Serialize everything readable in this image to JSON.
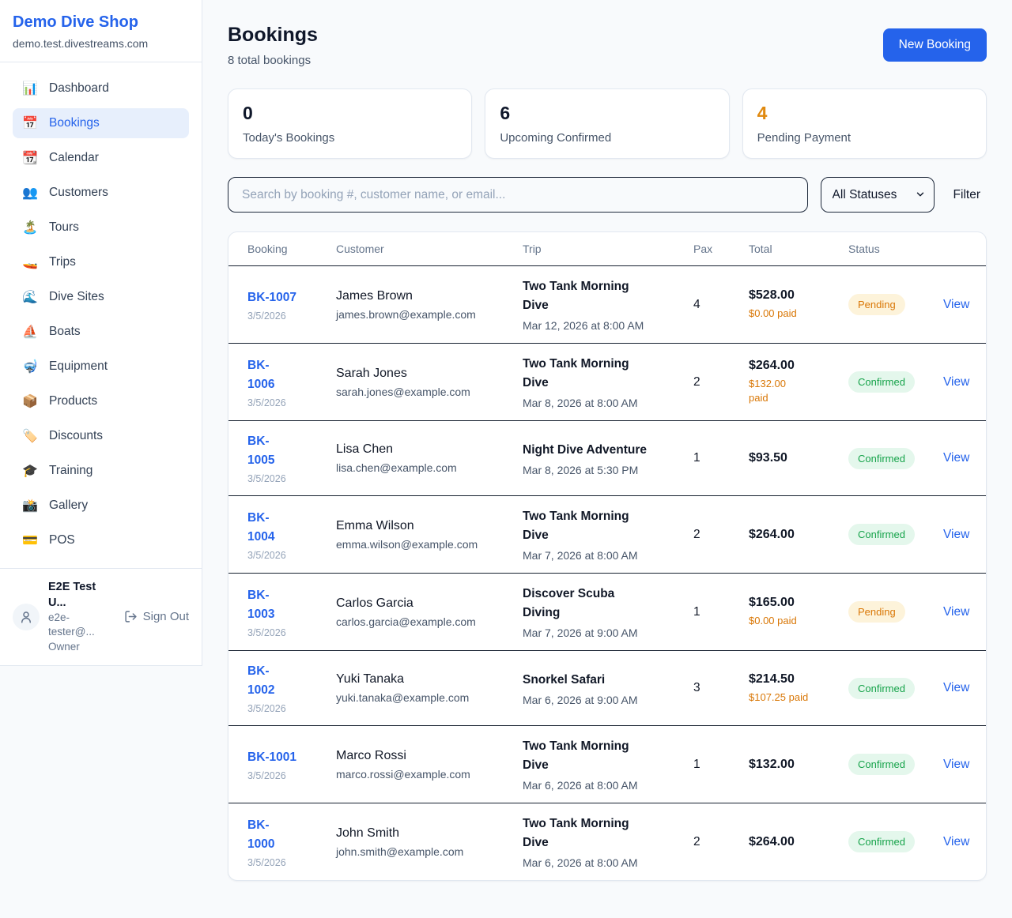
{
  "sidebar": {
    "brand": {
      "name": "Demo Dive Shop",
      "domain": "demo.test.divestreams.com"
    },
    "nav": [
      {
        "icon": "📊",
        "icon_name": "bar-chart-icon",
        "label": "Dashboard",
        "active": false
      },
      {
        "icon": "📅",
        "icon_name": "calendar-bookings-icon",
        "label": "Bookings",
        "active": true
      },
      {
        "icon": "📆",
        "icon_name": "calendar-icon",
        "label": "Calendar",
        "active": false
      },
      {
        "icon": "👥",
        "icon_name": "people-icon",
        "label": "Customers",
        "active": false
      },
      {
        "icon": "🏝️",
        "icon_name": "island-icon",
        "label": "Tours",
        "active": false
      },
      {
        "icon": "🚤",
        "icon_name": "speedboat-icon",
        "label": "Trips",
        "active": false
      },
      {
        "icon": "🌊",
        "icon_name": "wave-icon",
        "label": "Dive Sites",
        "active": false
      },
      {
        "icon": "⛵",
        "icon_name": "sailboat-icon",
        "label": "Boats",
        "active": false
      },
      {
        "icon": "🤿",
        "icon_name": "diving-mask-icon",
        "label": "Equipment",
        "active": false
      },
      {
        "icon": "📦",
        "icon_name": "package-icon",
        "label": "Products",
        "active": false
      },
      {
        "icon": "🏷️",
        "icon_name": "tag-icon",
        "label": "Discounts",
        "active": false
      },
      {
        "icon": "🎓",
        "icon_name": "graduation-cap-icon",
        "label": "Training",
        "active": false
      },
      {
        "icon": "📸",
        "icon_name": "camera-icon",
        "label": "Gallery",
        "active": false
      },
      {
        "icon": "💳",
        "icon_name": "credit-card-icon",
        "label": "POS",
        "active": false
      }
    ],
    "user": {
      "name": "E2E Test U...",
      "email": "e2e-tester@...",
      "role": "Owner",
      "sign_out_label": "Sign Out"
    }
  },
  "header": {
    "title": "Bookings",
    "subtitle": "8 total bookings",
    "new_booking_label": "New Booking"
  },
  "stats": [
    {
      "value": "0",
      "label": "Today's Bookings",
      "color": "#0f172a"
    },
    {
      "value": "6",
      "label": "Upcoming Confirmed",
      "color": "#0f172a"
    },
    {
      "value": "4",
      "label": "Pending Payment",
      "color": "#e0890f"
    }
  ],
  "filters": {
    "search_placeholder": "Search by booking #, customer name, or email...",
    "status_select_value": "All Statuses",
    "filter_label": "Filter"
  },
  "table": {
    "headers": [
      "Booking",
      "Customer",
      "Trip",
      "Pax",
      "Total",
      "Status"
    ],
    "rows": [
      {
        "id": "BK-1007",
        "id_wrap": false,
        "date": "3/5/2026",
        "customer": "James Brown",
        "email": "james.brown@example.com",
        "trip": "Two Tank Morning Dive",
        "datetime": "Mar 12, 2026 at 8:00 AM",
        "pax": "4",
        "total": "$528.00",
        "paid": "$0.00 paid",
        "paid_wrap": false,
        "status": "Pending",
        "action": "View"
      },
      {
        "id": "BK-1006",
        "id_wrap": true,
        "date": "3/5/2026",
        "customer": "Sarah Jones",
        "email": "sarah.jones@example.com",
        "trip": "Two Tank Morning Dive",
        "datetime": "Mar 8, 2026 at 8:00 AM",
        "pax": "2",
        "total": "$264.00",
        "paid": "$132.00 paid",
        "paid_wrap": true,
        "status": "Confirmed",
        "action": "View"
      },
      {
        "id": "BK-1005",
        "id_wrap": true,
        "date": "3/5/2026",
        "customer": "Lisa Chen",
        "email": "lisa.chen@example.com",
        "trip": "Night Dive Adventure",
        "datetime": "Mar 8, 2026 at 5:30 PM",
        "pax": "1",
        "total": "$93.50",
        "paid": null,
        "paid_wrap": false,
        "status": "Confirmed",
        "action": "View"
      },
      {
        "id": "BK-1004",
        "id_wrap": true,
        "date": "3/5/2026",
        "customer": "Emma Wilson",
        "email": "emma.wilson@example.com",
        "trip": "Two Tank Morning Dive",
        "datetime": "Mar 7, 2026 at 8:00 AM",
        "pax": "2",
        "total": "$264.00",
        "paid": null,
        "paid_wrap": false,
        "status": "Confirmed",
        "action": "View"
      },
      {
        "id": "BK-1003",
        "id_wrap": true,
        "date": "3/5/2026",
        "customer": "Carlos Garcia",
        "email": "carlos.garcia@example.com",
        "trip": "Discover Scuba Diving",
        "datetime": "Mar 7, 2026 at 9:00 AM",
        "pax": "1",
        "total": "$165.00",
        "paid": "$0.00 paid",
        "paid_wrap": false,
        "status": "Pending",
        "action": "View"
      },
      {
        "id": "BK-1002",
        "id_wrap": true,
        "date": "3/5/2026",
        "customer": "Yuki Tanaka",
        "email": "yuki.tanaka@example.com",
        "trip": "Snorkel Safari",
        "datetime": "Mar 6, 2026 at 9:00 AM",
        "pax": "3",
        "total": "$214.50",
        "paid": "$107.25 paid",
        "paid_wrap": false,
        "status": "Confirmed",
        "action": "View"
      },
      {
        "id": "BK-1001",
        "id_wrap": false,
        "date": "3/5/2026",
        "customer": "Marco Rossi",
        "email": "marco.rossi@example.com",
        "trip": "Two Tank Morning Dive",
        "datetime": "Mar 6, 2026 at 8:00 AM",
        "pax": "1",
        "total": "$132.00",
        "paid": null,
        "paid_wrap": false,
        "status": "Confirmed",
        "action": "View"
      },
      {
        "id": "BK-1000",
        "id_wrap": true,
        "date": "3/5/2026",
        "customer": "John Smith",
        "email": "john.smith@example.com",
        "trip": "Two Tank Morning Dive",
        "datetime": "Mar 6, 2026 at 8:00 AM",
        "pax": "2",
        "total": "$264.00",
        "paid": null,
        "paid_wrap": false,
        "status": "Confirmed",
        "action": "View"
      }
    ]
  },
  "colors": {
    "accent_blue": "#2563eb",
    "pending_text": "#d97706",
    "pending_bg": "#fdf3da",
    "confirmed_text": "#16a34a",
    "confirmed_bg": "#e4f7ec",
    "page_bg": "#f8fafc",
    "row_border": "#16202f",
    "muted_text": "#475569"
  }
}
